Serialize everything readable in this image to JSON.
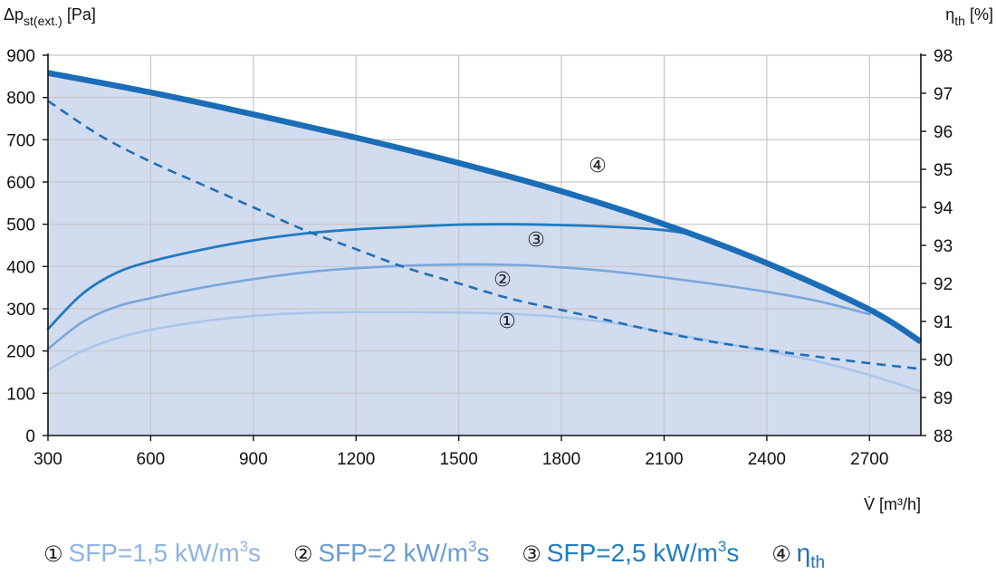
{
  "chart_data": {
    "type": "line",
    "y_left_label": "Δp",
    "y_left_label_sub": "st(ext.)",
    "y_left_unit": "[Pa]",
    "y_right_label": "η",
    "y_right_label_sub": "th",
    "y_right_unit": "[%]",
    "x_label": "V̇ [m³/h]",
    "xlim": [
      300,
      2850
    ],
    "ylim_left": [
      0,
      900
    ],
    "ylim_right": [
      88,
      98
    ],
    "x_ticks": [
      300,
      600,
      900,
      1200,
      1500,
      1800,
      2100,
      2400,
      2700
    ],
    "y_left_ticks": [
      0,
      100,
      200,
      300,
      400,
      500,
      600,
      700,
      800,
      900
    ],
    "y_right_ticks": [
      88,
      89,
      90,
      91,
      92,
      93,
      94,
      95,
      96,
      97,
      98
    ],
    "grid": true,
    "max_curve": {
      "x": [
        300,
        600,
        900,
        1200,
        1500,
        1800,
        2100,
        2400,
        2700,
        2850
      ],
      "y": [
        858,
        812,
        760,
        705,
        645,
        578,
        500,
        408,
        298,
        222
      ],
      "color": "#1a6db7"
    },
    "series": [
      {
        "marker": "①",
        "legend": "SFP=1,5 kW/m",
        "legend_sup": "3",
        "legend_tail": "s",
        "color": "#a9c6ea",
        "axis": "left",
        "x": [
          300,
          400,
          500,
          600,
          750,
          900,
          1050,
          1200,
          1350,
          1500,
          1650,
          1800,
          1950,
          2100,
          2250,
          2400,
          2550,
          2700,
          2850
        ],
        "y": [
          155,
          200,
          230,
          250,
          270,
          283,
          290,
          292,
          292,
          291,
          288,
          280,
          266,
          245,
          222,
          200,
          175,
          143,
          104
        ]
      },
      {
        "marker": "②",
        "legend": "SFP=2 kW/m",
        "legend_sup": "3",
        "legend_tail": "s",
        "color": "#79a6dc",
        "axis": "left",
        "x": [
          300,
          400,
          500,
          600,
          750,
          900,
          1050,
          1200,
          1350,
          1500,
          1650,
          1800,
          1950,
          2100,
          2250,
          2400,
          2550,
          2700
        ],
        "y": [
          205,
          268,
          305,
          325,
          350,
          370,
          386,
          396,
          402,
          405,
          404,
          398,
          388,
          374,
          358,
          340,
          318,
          287
        ]
      },
      {
        "marker": "③",
        "legend": "SFP=2,5 kW/m",
        "legend_sup": "3",
        "legend_tail": "s",
        "color": "#1f7bc1",
        "axis": "left",
        "x": [
          300,
          400,
          500,
          600,
          750,
          900,
          1050,
          1200,
          1350,
          1500,
          1650,
          1800,
          1950,
          2100,
          2190
        ],
        "y": [
          252,
          335,
          385,
          412,
          440,
          462,
          478,
          488,
          494,
          499,
          500,
          498,
          494,
          486,
          475
        ]
      },
      {
        "marker": "④",
        "legend": "η",
        "legend_sub": "th",
        "color": "#1f6fb8",
        "axis": "right",
        "dashed": true,
        "x": [
          300,
          450,
          600,
          750,
          900,
          1050,
          1200,
          1350,
          1500,
          1650,
          1800,
          1950,
          2100,
          2250,
          2400,
          2550,
          2700,
          2850
        ],
        "y": [
          96.8,
          95.9,
          95.2,
          94.6,
          94.0,
          93.4,
          92.9,
          92.4,
          92.0,
          91.6,
          91.3,
          91.0,
          90.7,
          90.45,
          90.25,
          90.07,
          89.9,
          89.75
        ]
      }
    ]
  }
}
